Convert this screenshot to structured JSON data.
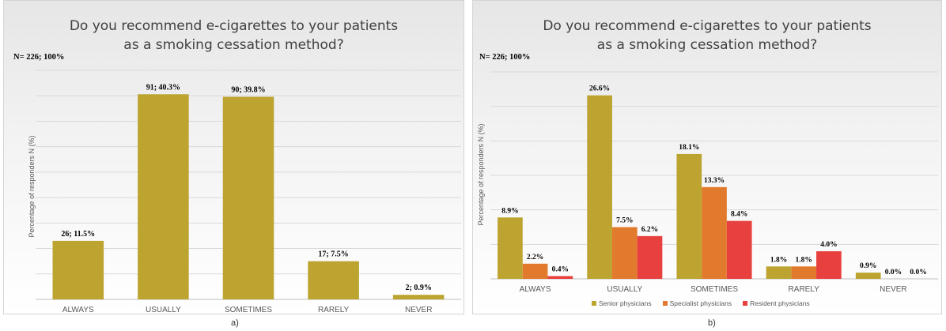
{
  "chart_data": [
    {
      "type": "bar",
      "title": "Do you recommend e-cigarettes to your patients as a smoking cessation method?",
      "title_lines": [
        "Do you recommend e-cigarettes to your patients",
        "as a smoking cessation method?"
      ],
      "n_label": "N= 226; 100%",
      "ylabel": "Percentage of responders N (%)",
      "xlabel": "",
      "categories": [
        "ALWAYS",
        "USUALLY",
        "SOMETIMES",
        "RARELY",
        "NEVER"
      ],
      "series": [
        {
          "values": [
            11.5,
            40.3,
            39.8,
            7.5,
            0.9
          ],
          "labels": [
            "26; 11.5%",
            "91; 40.3%",
            "90; 39.8%",
            "17; 7.5%",
            "2; 0.9%"
          ],
          "color": "#BDA431"
        }
      ],
      "ylim": [
        0,
        45
      ],
      "grid": true,
      "legend": "none",
      "caption": "a)"
    },
    {
      "type": "bar",
      "title": "Do you recommend e-cigarettes to your patients as a smoking cessation method?",
      "title_lines": [
        "Do you recommend e-cigarettes to your patients",
        "as a smoking cessation method?"
      ],
      "n_label": "N= 226; 100%",
      "ylabel": "Percentage of responders N (%)",
      "xlabel": "",
      "categories": [
        "ALWAYS",
        "USUALLY",
        "SOMETIMES",
        "RARELY",
        "NEVER"
      ],
      "series": [
        {
          "name": "Senior physicians",
          "values": [
            8.9,
            26.6,
            18.1,
            1.8,
            0.9
          ],
          "labels": [
            "8.9%",
            "26.6%",
            "18.1%",
            "1.8%",
            "0.9%"
          ],
          "color": "#BDA431"
        },
        {
          "name": "Specialist physicians",
          "values": [
            2.2,
            7.5,
            13.3,
            1.8,
            0.0
          ],
          "labels": [
            "2.2%",
            "7.5%",
            "13.3%",
            "1.8%",
            "0.0%"
          ],
          "color": "#E27A2D"
        },
        {
          "name": "Resident physicians",
          "values": [
            0.4,
            6.2,
            8.4,
            4.0,
            0.0
          ],
          "labels": [
            "0.4%",
            "6.2%",
            "8.4%",
            "4.0%",
            "0.0%"
          ],
          "color": "#E8403E"
        }
      ],
      "ylim": [
        0,
        30
      ],
      "grid": true,
      "legend": "bottom",
      "caption": "b)"
    }
  ]
}
